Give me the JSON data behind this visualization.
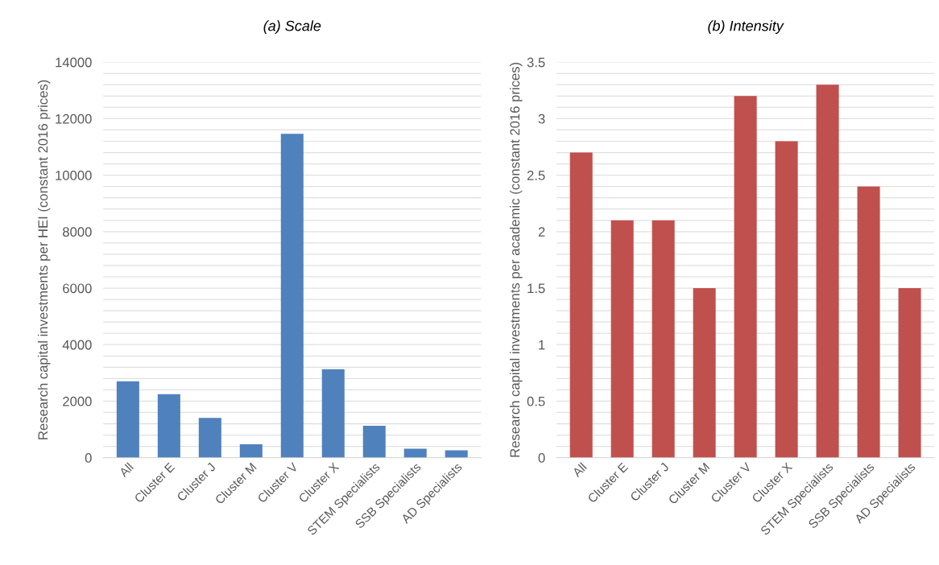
{
  "chart_data": [
    {
      "type": "bar",
      "title": "(a) Scale",
      "ylabel": "Research capital investments per HEI (constant 2016 prices)",
      "categories": [
        "All",
        "Cluster E",
        "Cluster J",
        "Cluster M",
        "Cluster V",
        "Cluster X",
        "STEM Specialists",
        "SSB Specialists",
        "AD Specialists"
      ],
      "values": [
        2700,
        2250,
        1410,
        470,
        11460,
        3130,
        1130,
        320,
        260
      ],
      "color": "#4f81bd",
      "ylim": [
        0,
        14000
      ],
      "yticks": [
        0,
        {
          "value": 400,
          "label": null
        },
        {
          "value": 800,
          "label": null
        },
        {
          "value": 1200,
          "label": null
        },
        {
          "value": 1600,
          "label": null
        },
        2000,
        {
          "value": 2400,
          "label": null
        },
        {
          "value": 2800,
          "label": null
        },
        {
          "value": 3200,
          "label": null
        },
        {
          "value": 3600,
          "label": null
        },
        4000,
        {
          "value": 4400,
          "label": null
        },
        {
          "value": 4800,
          "label": null
        },
        {
          "value": 5200,
          "label": null
        },
        {
          "value": 5600,
          "label": null
        },
        6000,
        {
          "value": 6400,
          "label": null
        },
        {
          "value": 6800,
          "label": null
        },
        {
          "value": 7200,
          "label": null
        },
        {
          "value": 7600,
          "label": null
        },
        8000,
        {
          "value": 8400,
          "label": null
        },
        {
          "value": 8800,
          "label": null
        },
        {
          "value": 9200,
          "label": null
        },
        {
          "value": 9600,
          "label": null
        },
        10000,
        {
          "value": 10400,
          "label": null
        },
        {
          "value": 10800,
          "label": null
        },
        {
          "value": 11200,
          "label": null
        },
        {
          "value": 11600,
          "label": null
        },
        12000,
        {
          "value": 12400,
          "label": null
        },
        {
          "value": 12800,
          "label": null
        },
        {
          "value": 13200,
          "label": null
        },
        {
          "value": 13600,
          "label": null
        },
        14000
      ],
      "grid": "y"
    },
    {
      "type": "bar",
      "title": "(b) Intensity",
      "ylabel": "Research capital investments per academic (constant 2016 prices)",
      "categories": [
        "All",
        "Cluster E",
        "Cluster J",
        "Cluster M",
        "Cluster V",
        "Cluster X",
        "STEM Specialists",
        "SSB Specialists",
        "AD Specialists"
      ],
      "values": [
        2.7,
        2.1,
        2.1,
        1.5,
        3.2,
        2.8,
        3.3,
        2.4,
        1.5
      ],
      "color": "#c0504d",
      "ylim": [
        0,
        3.5
      ],
      "yticks": [
        0,
        {
          "value": 0.1,
          "label": null
        },
        {
          "value": 0.2,
          "label": null
        },
        {
          "value": 0.3,
          "label": null
        },
        {
          "value": 0.4,
          "label": null
        },
        0.5,
        {
          "value": 0.6,
          "label": null
        },
        {
          "value": 0.7,
          "label": null
        },
        {
          "value": 0.8,
          "label": null
        },
        {
          "value": 0.9,
          "label": null
        },
        1,
        {
          "value": 1.1,
          "label": null
        },
        {
          "value": 1.2,
          "label": null
        },
        {
          "value": 1.3,
          "label": null
        },
        {
          "value": 1.4,
          "label": null
        },
        1.5,
        {
          "value": 1.6,
          "label": null
        },
        {
          "value": 1.7,
          "label": null
        },
        {
          "value": 1.8,
          "label": null
        },
        {
          "value": 1.9,
          "label": null
        },
        2,
        {
          "value": 2.1,
          "label": null
        },
        {
          "value": 2.2,
          "label": null
        },
        {
          "value": 2.3,
          "label": null
        },
        {
          "value": 2.4,
          "label": null
        },
        2.5,
        {
          "value": 2.6,
          "label": null
        },
        {
          "value": 2.7,
          "label": null
        },
        {
          "value": 2.8,
          "label": null
        },
        {
          "value": 2.9,
          "label": null
        },
        3,
        {
          "value": 3.1,
          "label": null
        },
        {
          "value": 3.2,
          "label": null
        },
        {
          "value": 3.3,
          "label": null
        },
        {
          "value": 3.4,
          "label": null
        },
        3.5
      ],
      "grid": "y"
    }
  ]
}
